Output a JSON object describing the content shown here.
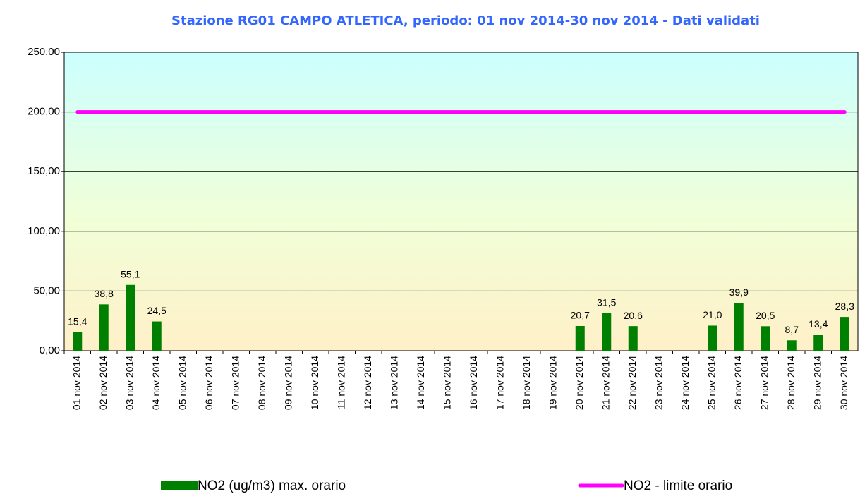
{
  "chart_data": {
    "type": "bar",
    "title": "Stazione RG01 CAMPO ATLETICA, periodo: 01 nov 2014-30 nov 2014 - Dati validati",
    "categories": [
      "01 nov 2014",
      "02 nov 2014",
      "03 nov 2014",
      "04 nov 2014",
      "05 nov 2014",
      "06 nov 2014",
      "07 nov 2014",
      "08 nov 2014",
      "09 nov 2014",
      "10 nov 2014",
      "11 nov 2014",
      "12 nov 2014",
      "13 nov 2014",
      "14 nov 2014",
      "15 nov 2014",
      "16 nov 2014",
      "17 nov 2014",
      "18 nov 2014",
      "19 nov 2014",
      "20 nov 2014",
      "21 nov 2014",
      "22 nov 2014",
      "23 nov 2014",
      "24 nov 2014",
      "25 nov 2014",
      "26 nov 2014",
      "27 nov 2014",
      "28 nov 2014",
      "29 nov 2014",
      "30 nov 2014"
    ],
    "series": [
      {
        "name": "NO2 (ug/m3) max. orario",
        "type": "bar",
        "color": "#008000",
        "values": [
          15.4,
          38.8,
          55.1,
          24.5,
          null,
          null,
          null,
          null,
          null,
          null,
          null,
          null,
          null,
          null,
          null,
          null,
          null,
          null,
          null,
          20.7,
          31.5,
          20.6,
          null,
          null,
          21.0,
          39.9,
          20.5,
          8.7,
          13.4,
          28.3
        ],
        "value_labels": [
          "15,4",
          "38,8",
          "55,1",
          "24,5",
          null,
          null,
          null,
          null,
          null,
          null,
          null,
          null,
          null,
          null,
          null,
          null,
          null,
          null,
          null,
          "20,7",
          "31,5",
          "20,6",
          null,
          null,
          "21,0",
          "39,9",
          "20,5",
          "8,7",
          "13,4",
          "28,3"
        ]
      },
      {
        "name": "NO2 - limite orario",
        "type": "line",
        "color": "#ff00ff",
        "values": [
          200,
          200,
          200,
          200,
          200,
          200,
          200,
          200,
          200,
          200,
          200,
          200,
          200,
          200,
          200,
          200,
          200,
          200,
          200,
          200,
          200,
          200,
          200,
          200,
          200,
          200,
          200,
          200,
          200,
          200
        ]
      }
    ],
    "ylim": [
      0,
      250
    ],
    "yticks": [
      {
        "value": 0,
        "label": "0,00"
      },
      {
        "value": 50,
        "label": "50,00"
      },
      {
        "value": 100,
        "label": "100,00"
      },
      {
        "value": 150,
        "label": "150,00"
      },
      {
        "value": 200,
        "label": "200,00"
      },
      {
        "value": 250,
        "label": "250,00"
      }
    ],
    "grid": true,
    "legend": "bottom"
  }
}
